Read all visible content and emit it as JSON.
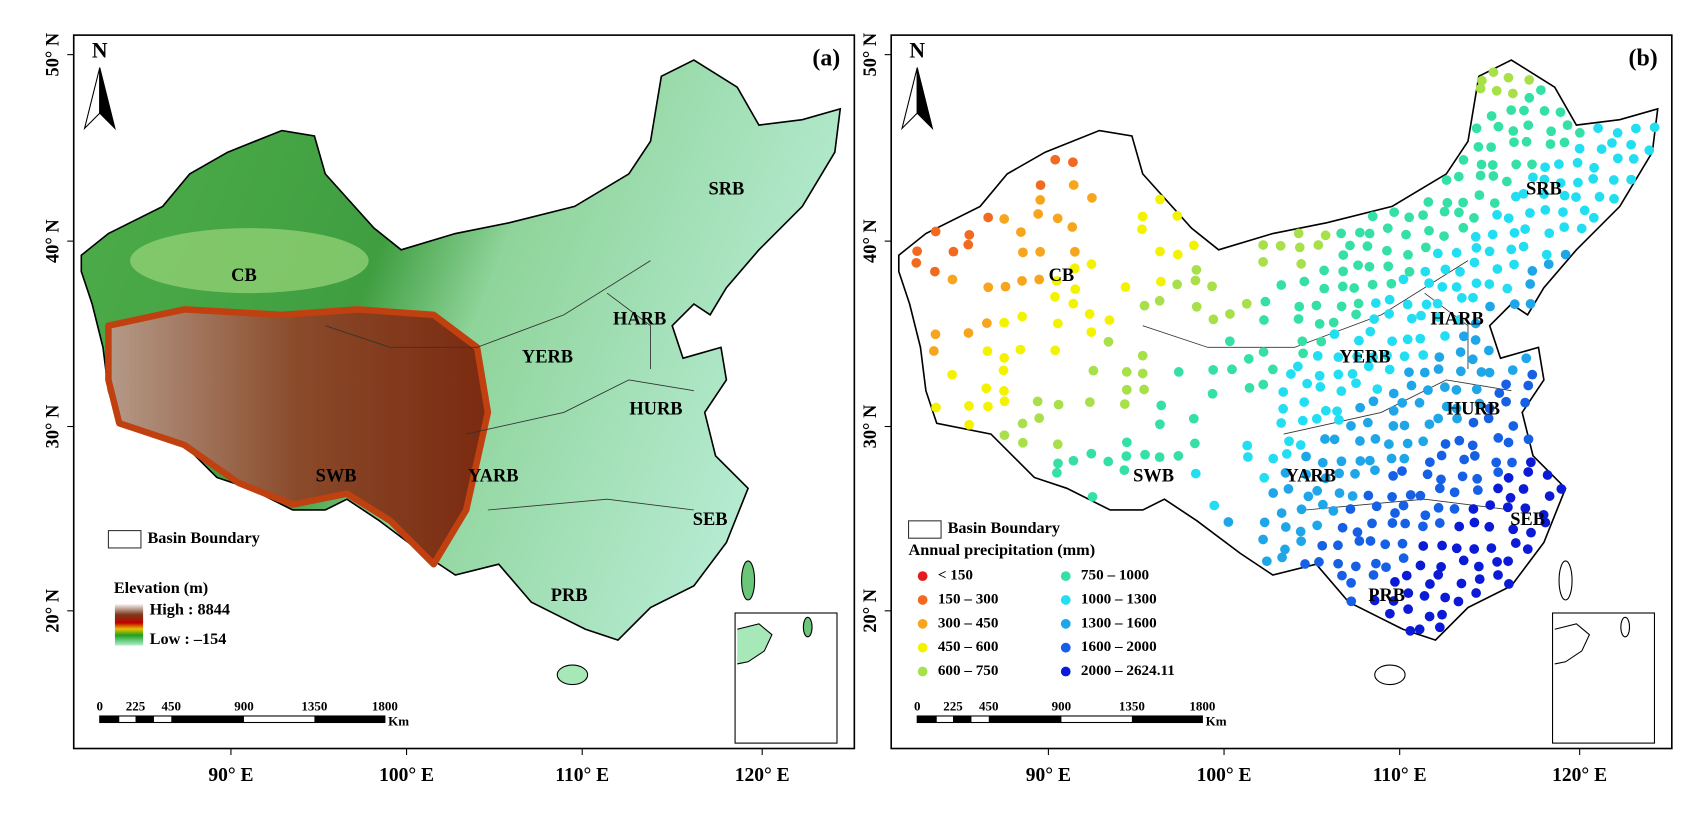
{
  "panels": [
    {
      "label": "(a)",
      "north": "N",
      "basins": [
        "CB",
        "SWB",
        "YERB",
        "HARB",
        "SRB",
        "HURB",
        "YARB",
        "SEB",
        "PRB"
      ],
      "legend": {
        "boundary": "Basin Boundary",
        "title": "Elevation (m)",
        "high": "High : 8844",
        "low": "Low : –154"
      }
    },
    {
      "label": "(b)",
      "north": "N",
      "basins": [
        "CB",
        "SWB",
        "YERB",
        "HARB",
        "SRB",
        "HURB",
        "YARB",
        "SEB",
        "PRB"
      ],
      "legend": {
        "boundary": "Basin Boundary",
        "title": "Annual precipitation (mm)",
        "classes": [
          {
            "label": "< 150",
            "color": "#e41a1c"
          },
          {
            "label": "150 – 300",
            "color": "#f26a1f"
          },
          {
            "label": "300 – 450",
            "color": "#f7a51c"
          },
          {
            "label": "450 – 600",
            "color": "#f3f300"
          },
          {
            "label": "600 – 750",
            "color": "#a8e04a"
          },
          {
            "label": "750 – 1000",
            "color": "#35e0a4"
          },
          {
            "label": "1000 – 1300",
            "color": "#22def2"
          },
          {
            "label": "1300 – 1600",
            "color": "#1fa6e8"
          },
          {
            "label": "1600 – 2000",
            "color": "#1660e6"
          },
          {
            "label": "2000 – 2624.11",
            "color": "#0a1ad6"
          }
        ]
      }
    }
  ],
  "axes": {
    "lat": [
      "50° N",
      "40° N",
      "30° N",
      "20° N"
    ],
    "lon": [
      "90° E",
      "100° E",
      "110° E",
      "120° E"
    ]
  },
  "scale": {
    "ticks": [
      "0",
      "225",
      "450",
      "900",
      "1350",
      "1800"
    ],
    "unit": "Km"
  }
}
